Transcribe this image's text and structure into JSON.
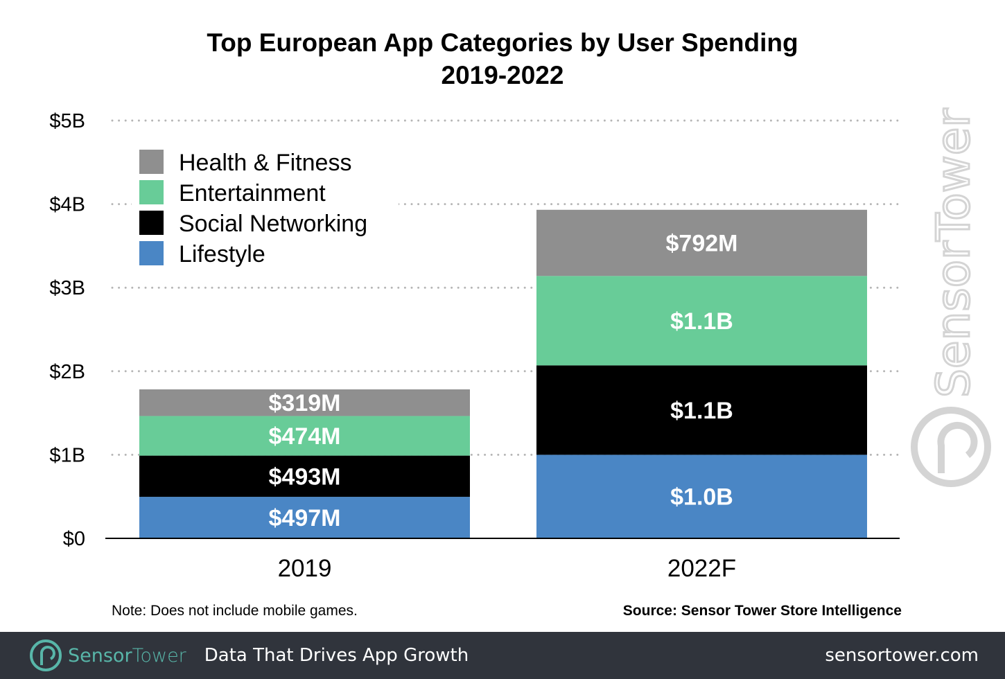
{
  "chart_data": {
    "type": "bar",
    "stacked": true,
    "title": "Top European App Categories by User Spending",
    "subtitle": "2019-2022",
    "categories": [
      "2019",
      "2022F"
    ],
    "series": [
      {
        "name": "Lifestyle",
        "color": "#4a86c5",
        "values": [
          0.497,
          1.0
        ],
        "labels": [
          "$497M",
          "$1.0B"
        ]
      },
      {
        "name": "Social Networking",
        "color": "#000000",
        "values": [
          0.493,
          1.07
        ],
        "labels": [
          "$493M",
          "$1.1B"
        ]
      },
      {
        "name": "Entertainment",
        "color": "#68cc98",
        "values": [
          0.474,
          1.07
        ],
        "labels": [
          "$474M",
          "$1.1B"
        ]
      },
      {
        "name": "Health & Fitness",
        "color": "#8f8f8f",
        "values": [
          0.319,
          0.792
        ],
        "labels": [
          "$319M",
          "$792M"
        ]
      }
    ],
    "ylim": [
      0,
      5
    ],
    "y_ticks": [
      {
        "value": 0,
        "label": "$0"
      },
      {
        "value": 1,
        "label": "$1B"
      },
      {
        "value": 2,
        "label": "$2B"
      },
      {
        "value": 3,
        "label": "$3B"
      },
      {
        "value": 4,
        "label": "$4B"
      },
      {
        "value": 5,
        "label": "$5B"
      }
    ],
    "grid": true,
    "legend_position": "top-left",
    "legend_order": [
      "Health & Fitness",
      "Entertainment",
      "Social Networking",
      "Lifestyle"
    ]
  },
  "note": "Note: Does not include mobile games.",
  "source": "Source: Sensor Tower Store Intelligence",
  "watermark": "SensorTower",
  "footer": {
    "brand_sensor": "Sensor",
    "brand_tower": "Tower",
    "tagline": "Data That Drives App Growth",
    "website": "sensortower.com",
    "background": "#30343c",
    "brand_color": "#58b6a9"
  }
}
